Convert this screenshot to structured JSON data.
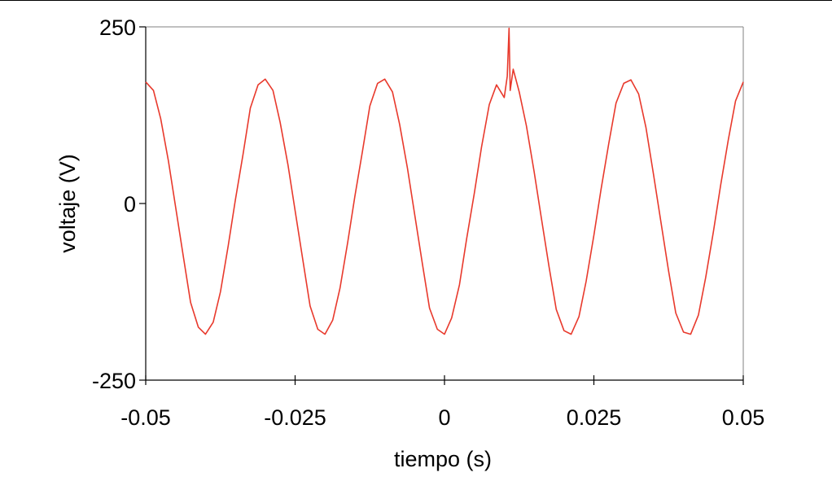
{
  "chart_data": {
    "type": "line",
    "title": "",
    "xlabel": "tiempo (s)",
    "ylabel": "voltaje (V)",
    "xlim": [
      -0.05,
      0.05
    ],
    "ylim": [
      -250,
      250
    ],
    "x_ticks": [
      -0.05,
      -0.025,
      0,
      0.025,
      0.05
    ],
    "x_tick_labels": [
      "-0.05",
      "-0.025",
      "0",
      "0.025",
      "0.05"
    ],
    "y_ticks": [
      -250,
      0,
      250
    ],
    "y_tick_labels": [
      "-250",
      "0",
      "250"
    ],
    "grid": false,
    "legend": "none",
    "series": [
      {
        "color": "#e8392c",
        "points": [
          [
            -0.05,
            172
          ],
          [
            -0.0487,
            160
          ],
          [
            -0.0475,
            120
          ],
          [
            -0.0462,
            60
          ],
          [
            -0.045,
            -5
          ],
          [
            -0.0437,
            -75
          ],
          [
            -0.0425,
            -140
          ],
          [
            -0.0412,
            -175
          ],
          [
            -0.04,
            -185
          ],
          [
            -0.0387,
            -168
          ],
          [
            -0.0375,
            -125
          ],
          [
            -0.0362,
            -60
          ],
          [
            -0.035,
            5
          ],
          [
            -0.0337,
            70
          ],
          [
            -0.0325,
            135
          ],
          [
            -0.0312,
            168
          ],
          [
            -0.03,
            176
          ],
          [
            -0.0287,
            160
          ],
          [
            -0.0275,
            115
          ],
          [
            -0.0262,
            55
          ],
          [
            -0.025,
            -10
          ],
          [
            -0.0237,
            -80
          ],
          [
            -0.0225,
            -145
          ],
          [
            -0.0212,
            -178
          ],
          [
            -0.02,
            -185
          ],
          [
            -0.0187,
            -165
          ],
          [
            -0.0175,
            -120
          ],
          [
            -0.0162,
            -55
          ],
          [
            -0.015,
            10
          ],
          [
            -0.0137,
            75
          ],
          [
            -0.0125,
            138
          ],
          [
            -0.0112,
            170
          ],
          [
            -0.01,
            176
          ],
          [
            -0.0087,
            158
          ],
          [
            -0.0075,
            112
          ],
          [
            -0.0062,
            50
          ],
          [
            -0.005,
            -15
          ],
          [
            -0.0037,
            -85
          ],
          [
            -0.0025,
            -148
          ],
          [
            -0.0012,
            -178
          ],
          [
            0.0,
            -185
          ],
          [
            0.0012,
            -162
          ],
          [
            0.0025,
            -115
          ],
          [
            0.0037,
            -50
          ],
          [
            0.005,
            15
          ],
          [
            0.0062,
            80
          ],
          [
            0.0075,
            140
          ],
          [
            0.0087,
            168
          ],
          [
            0.01,
            150
          ],
          [
            0.0105,
            180
          ],
          [
            0.0108,
            248
          ],
          [
            0.011,
            160
          ],
          [
            0.0115,
            190
          ],
          [
            0.0125,
            158
          ],
          [
            0.0137,
            110
          ],
          [
            0.015,
            45
          ],
          [
            0.0162,
            -20
          ],
          [
            0.0175,
            -90
          ],
          [
            0.0187,
            -150
          ],
          [
            0.02,
            -180
          ],
          [
            0.0212,
            -185
          ],
          [
            0.0225,
            -160
          ],
          [
            0.0237,
            -110
          ],
          [
            0.025,
            -45
          ],
          [
            0.0262,
            20
          ],
          [
            0.0275,
            85
          ],
          [
            0.0287,
            142
          ],
          [
            0.03,
            170
          ],
          [
            0.0312,
            175
          ],
          [
            0.0325,
            155
          ],
          [
            0.0337,
            108
          ],
          [
            0.035,
            40
          ],
          [
            0.0362,
            -25
          ],
          [
            0.0375,
            -95
          ],
          [
            0.0387,
            -155
          ],
          [
            0.04,
            -182
          ],
          [
            0.0412,
            -185
          ],
          [
            0.0425,
            -158
          ],
          [
            0.0437,
            -105
          ],
          [
            0.045,
            -40
          ],
          [
            0.0462,
            25
          ],
          [
            0.0475,
            90
          ],
          [
            0.0487,
            145
          ],
          [
            0.05,
            172
          ]
        ]
      }
    ]
  }
}
